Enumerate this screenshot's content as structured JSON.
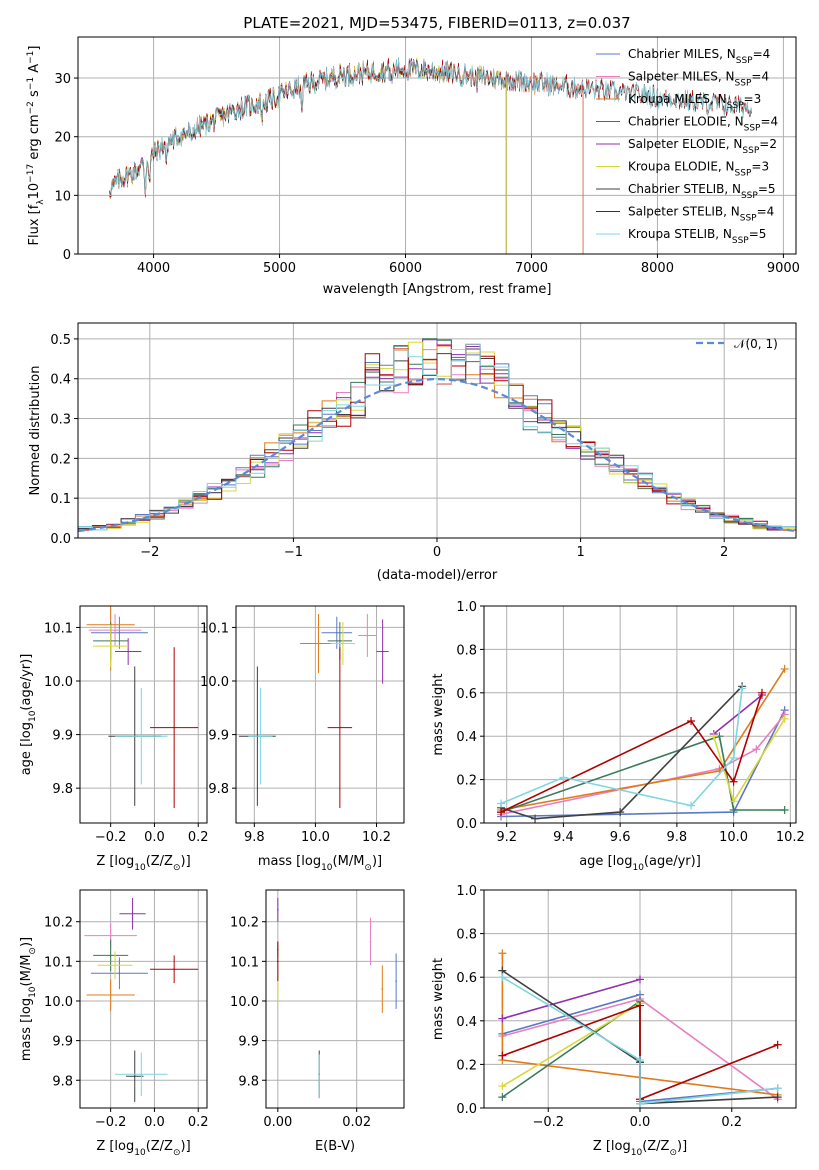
{
  "colors": [
    "#5a78c8",
    "#e87fc0",
    "#e07b1a",
    "#3a7a5a",
    "#9030b0",
    "#d8d83a",
    "#404040",
    "#b00000",
    "#7fd6e0"
  ],
  "legend_entries": [
    "Chabrier MILES, N",
    "Salpeter MILES, N",
    "Kroupa MILES, N",
    "Chabrier ELODIE, N",
    "Salpeter ELODIE, N",
    "Kroupa ELODIE, N",
    "Chabrier STELIB, N",
    "Salpeter STELIB, N",
    "Kroupa STELIB, N"
  ],
  "legend_sub": "SSP",
  "legend_vals": [
    "=4",
    "=4",
    "=3",
    "=4",
    "=2",
    "=3",
    "=5",
    "=4",
    "=5"
  ],
  "chart_data": [
    {
      "type": "line",
      "title": "PLATE=2021, MJD=53475, FIBERID=0113, z=0.037",
      "xlabel": "wavelength [Angstrom, rest frame]",
      "ylabel": "Flux [f",
      "ylabel_sub": "λ",
      "ylabel_rest": "10",
      "ylabel_exp": "−17",
      "ylabel_tail": " erg cm",
      "ylabel_exp2": "−2",
      "ylabel_tail2": " s",
      "ylabel_exp3": "−1",
      "ylabel_tail3": " A",
      "ylabel_exp4": "−1",
      "ylabel_end": "]",
      "xlim": [
        3400,
        9100
      ],
      "ylim": [
        0,
        37
      ],
      "xticks": [
        4000,
        5000,
        6000,
        7000,
        8000,
        9000
      ],
      "yticks": [
        0,
        10,
        20,
        30
      ],
      "spectrum_knots": [
        [
          3650,
          11
        ],
        [
          3750,
          13
        ],
        [
          3850,
          14
        ],
        [
          3950,
          16
        ],
        [
          4100,
          19
        ],
        [
          4300,
          21
        ],
        [
          4500,
          23
        ],
        [
          4700,
          25
        ],
        [
          4900,
          26
        ],
        [
          5100,
          28
        ],
        [
          5300,
          29.5
        ],
        [
          5500,
          30.5
        ],
        [
          5700,
          31
        ],
        [
          5900,
          31.5
        ],
        [
          6100,
          31.5
        ],
        [
          6300,
          31
        ],
        [
          6500,
          30.5
        ],
        [
          6700,
          30
        ],
        [
          6900,
          29.5
        ],
        [
          7100,
          29
        ],
        [
          7300,
          28.5
        ],
        [
          7500,
          28
        ],
        [
          7700,
          27.5
        ],
        [
          7900,
          27
        ],
        [
          8100,
          26.5
        ],
        [
          8300,
          26
        ],
        [
          8500,
          25.5
        ],
        [
          8700,
          25
        ],
        [
          8900,
          24.5
        ]
      ],
      "series": [
        {
          "name": "Chabrier MILES",
          "xmax": 7410
        },
        {
          "name": "Salpeter MILES",
          "xmax": 7410
        },
        {
          "name": "Kroupa MILES",
          "xmax": 7410
        },
        {
          "name": "Chabrier ELODIE",
          "xmax": 6800
        },
        {
          "name": "Salpeter ELODIE",
          "xmax": 6800
        },
        {
          "name": "Kroupa ELODIE",
          "xmax": 6800
        },
        {
          "name": "Chabrier STELIB",
          "xmax": 8750
        },
        {
          "name": "Salpeter STELIB",
          "xmax": 8750
        },
        {
          "name": "Kroupa STELIB",
          "xmax": 8750
        }
      ]
    },
    {
      "type": "histogram",
      "xlabel": "(data-model)/error",
      "ylabel": "Normed distribution",
      "xlim": [
        -2.5,
        2.5
      ],
      "ylim": [
        0,
        0.54
      ],
      "xticks": [
        -2,
        -1,
        0,
        1,
        2
      ],
      "xtick_labels": [
        "−2",
        "−1",
        "0",
        "1",
        "2"
      ],
      "yticks": [
        0,
        0.1,
        0.2,
        0.3,
        0.4,
        0.5
      ],
      "ytick_labels": [
        "0.0",
        "0.1",
        "0.2",
        "0.3",
        "0.4",
        "0.5"
      ],
      "bin_width": 0.1,
      "gaussian_label": "𝒩(0, 1)",
      "gaussian_color": "#5a8ad8"
    },
    {
      "type": "scatter",
      "xlabel": "Z [log",
      "xlabel_sub": "10",
      "xlabel_tail": "(Z/Z",
      "xlabel_sun": "⊙",
      "xlabel_end": ")]",
      "ylabel": "age  [log",
      "ylabel_sub": "10",
      "ylabel_tail": "(age/yr)]",
      "xlim": [
        -0.34,
        0.24
      ],
      "ylim": [
        9.735,
        10.14
      ],
      "xticks": [
        -0.2,
        0.0,
        0.2
      ],
      "xtick_labels": [
        "−0.2",
        "0.0",
        "0.2"
      ],
      "yticks": [
        9.8,
        9.9,
        10.0,
        10.1
      ],
      "ytick_labels": [
        "9.8",
        "9.9",
        "10.0",
        "10.1"
      ],
      "points": [
        {
          "x": -0.16,
          "y": 10.09,
          "xerr": 0.13,
          "yerr": 0.03
        },
        {
          "x": -0.18,
          "y": 10.095,
          "xerr": 0.12,
          "yerr": 0.03
        },
        {
          "x": -0.2,
          "y": 10.105,
          "xerr": 0.11,
          "yerr": 0.085
        },
        {
          "x": -0.2,
          "y": 10.075,
          "xerr": 0.08,
          "yerr": 0.035
        },
        {
          "x": -0.12,
          "y": 10.055,
          "xerr": 0.06,
          "yerr": 0.025
        },
        {
          "x": -0.2,
          "y": 10.065,
          "xerr": 0.08,
          "yerr": 0.04
        },
        {
          "x": -0.09,
          "y": 9.897,
          "xerr": 0.12,
          "yerr": 0.13
        },
        {
          "x": 0.09,
          "y": 9.913,
          "xerr": 0.11,
          "yerr": 0.15
        },
        {
          "x": -0.06,
          "y": 9.897,
          "xerr": 0.12,
          "yerr": 0.09
        }
      ]
    },
    {
      "type": "scatter",
      "xlabel": "mass [log",
      "xlabel_sub": "10",
      "xlabel_tail": "(M/M",
      "xlabel_sun": "⊙",
      "xlabel_end": ")]",
      "xlim": [
        9.74,
        10.29
      ],
      "ylim": [
        9.735,
        10.14
      ],
      "xticks": [
        9.8,
        10.0,
        10.2
      ],
      "xtick_labels": [
        "9.8",
        "10.0",
        "10.2"
      ],
      "yticks": [
        9.8,
        9.9,
        10.0,
        10.1
      ],
      "ytick_labels": [
        "9.8",
        "9.9",
        "10.0",
        "10.1"
      ],
      "points": [
        {
          "x": 10.07,
          "y": 10.09,
          "xerr": 0.05,
          "yerr": 0.03
        },
        {
          "x": 10.17,
          "y": 10.085,
          "xerr": 0.03,
          "yerr": 0.04
        },
        {
          "x": 10.01,
          "y": 10.07,
          "xerr": 0.06,
          "yerr": 0.055
        },
        {
          "x": 10.08,
          "y": 10.075,
          "xerr": 0.04,
          "yerr": 0.035
        },
        {
          "x": 10.22,
          "y": 10.055,
          "xerr": 0.02,
          "yerr": 0.06
        },
        {
          "x": 10.09,
          "y": 10.07,
          "xerr": 0.04,
          "yerr": 0.04
        },
        {
          "x": 9.81,
          "y": 9.897,
          "xerr": 0.06,
          "yerr": 0.13
        },
        {
          "x": 10.08,
          "y": 9.913,
          "xerr": 0.04,
          "yerr": 0.15
        },
        {
          "x": 9.82,
          "y": 9.897,
          "xerr": 0.04,
          "yerr": 0.09
        }
      ]
    },
    {
      "type": "line",
      "xlabel": "age  [log",
      "xlabel_sub": "10",
      "xlabel_tail": "(age/yr)]",
      "ylabel": "mass weight",
      "xlim": [
        9.12,
        10.22
      ],
      "ylim": [
        0,
        1.0
      ],
      "xticks": [
        9.2,
        9.4,
        9.6,
        9.8,
        10.0,
        10.2
      ],
      "xtick_labels": [
        "9.2",
        "9.4",
        "9.6",
        "9.8",
        "10.0",
        "10.2"
      ],
      "yticks": [
        0,
        0.2,
        0.4,
        0.6,
        0.8,
        1.0
      ],
      "ytick_labels": [
        "0.0",
        "0.2",
        "0.4",
        "0.6",
        "0.8",
        "1.0"
      ],
      "series": [
        {
          "name": "Chabrier MILES",
          "x": [
            9.18,
            10.0,
            10.18
          ],
          "y": [
            0.03,
            0.05,
            0.52
          ]
        },
        {
          "name": "Salpeter MILES",
          "x": [
            9.18,
            9.95,
            10.08,
            10.18
          ],
          "y": [
            0.04,
            0.25,
            0.34,
            0.5
          ]
        },
        {
          "name": "Kroupa MILES",
          "x": [
            9.18,
            9.95,
            10.18
          ],
          "y": [
            0.06,
            0.24,
            0.71
          ]
        },
        {
          "name": "Chabrier ELODIE",
          "x": [
            9.18,
            9.95,
            10.0,
            10.18
          ],
          "y": [
            0.05,
            0.4,
            0.06,
            0.06
          ]
        },
        {
          "name": "Salpeter ELODIE",
          "x": [
            9.93,
            10.1
          ],
          "y": [
            0.41,
            0.59
          ]
        },
        {
          "name": "Kroupa ELODIE",
          "x": [
            9.93,
            10.0,
            10.18
          ],
          "y": [
            0.4,
            0.1,
            0.48
          ]
        },
        {
          "name": "Chabrier STELIB",
          "x": [
            9.18,
            9.3,
            9.6,
            10.03
          ],
          "y": [
            0.07,
            0.02,
            0.05,
            0.63
          ]
        },
        {
          "name": "Salpeter STELIB",
          "x": [
            9.18,
            9.85,
            10.0,
            10.1
          ],
          "y": [
            0.05,
            0.47,
            0.19,
            0.6
          ]
        },
        {
          "name": "Kroupa STELIB",
          "x": [
            9.18,
            9.4,
            9.85,
            10.0,
            10.03
          ],
          "y": [
            0.09,
            0.21,
            0.08,
            0.3,
            0.62
          ]
        }
      ]
    },
    {
      "type": "scatter",
      "xlabel": "Z [log",
      "xlabel_sub": "10",
      "xlabel_tail": "(Z/Z",
      "xlabel_sun": "⊙",
      "xlabel_end": ")]",
      "ylabel": "mass [log",
      "ylabel_sub": "10",
      "ylabel_tail": "(M/M",
      "ylabel_sun": "⊙",
      "ylabel_end": ")]",
      "xlim": [
        -0.34,
        0.24
      ],
      "ylim": [
        9.73,
        10.28
      ],
      "xticks": [
        -0.2,
        0.0,
        0.2
      ],
      "xtick_labels": [
        "−0.2",
        "0.0",
        "0.2"
      ],
      "yticks": [
        9.8,
        9.9,
        10.0,
        10.1,
        10.2
      ],
      "ytick_labels": [
        "9.8",
        "9.9",
        "10.0",
        "10.1",
        "10.2"
      ],
      "points": [
        {
          "x": -0.16,
          "y": 10.07,
          "xerr": 0.13,
          "yerr": 0.04
        },
        {
          "x": -0.2,
          "y": 10.165,
          "xerr": 0.12,
          "yerr": 0.03
        },
        {
          "x": -0.2,
          "y": 10.015,
          "xerr": 0.11,
          "yerr": 0.04
        },
        {
          "x": -0.2,
          "y": 10.115,
          "xerr": 0.08,
          "yerr": 0.04
        },
        {
          "x": -0.1,
          "y": 10.22,
          "xerr": 0.06,
          "yerr": 0.04
        },
        {
          "x": -0.18,
          "y": 10.09,
          "xerr": 0.08,
          "yerr": 0.035
        },
        {
          "x": -0.09,
          "y": 9.81,
          "xerr": 0.04,
          "yerr": 0.065
        },
        {
          "x": 0.09,
          "y": 10.08,
          "xerr": 0.11,
          "yerr": 0.035
        },
        {
          "x": -0.06,
          "y": 9.815,
          "xerr": 0.12,
          "yerr": 0.055
        }
      ]
    },
    {
      "type": "scatter",
      "xlabel": "E(B-V)",
      "xlim": [
        -0.003,
        0.032
      ],
      "ylim": [
        9.73,
        10.28
      ],
      "xticks": [
        0.0,
        0.02
      ],
      "xtick_labels": [
        "0.00",
        "0.02"
      ],
      "yticks": [
        9.8,
        9.9,
        10.0,
        10.1,
        10.2
      ],
      "ytick_labels": [
        "9.8",
        "9.9",
        "10.0",
        "10.1",
        "10.2"
      ],
      "points": [
        {
          "x": 0.03,
          "y": 10.05,
          "xerr": 0,
          "yerr": 0.07
        },
        {
          "x": 0.0235,
          "y": 10.15,
          "xerr": 0,
          "yerr": 0.06
        },
        {
          "x": 0.0265,
          "y": 10.03,
          "xerr": 0,
          "yerr": 0.06
        },
        {
          "x": 0.0,
          "y": 10.13,
          "xerr": 0,
          "yerr": 0.02
        },
        {
          "x": 0.0,
          "y": 10.23,
          "xerr": 0,
          "yerr": 0.03
        },
        {
          "x": 0.0,
          "y": 10.03,
          "xerr": 0,
          "yerr": 0.03
        },
        {
          "x": 0.0105,
          "y": 9.815,
          "xerr": 0,
          "yerr": 0.06
        },
        {
          "x": 0.0,
          "y": 10.1,
          "xerr": 0,
          "yerr": 0.05
        },
        {
          "x": 0.0105,
          "y": 9.81,
          "xerr": 0,
          "yerr": 0.055
        }
      ]
    },
    {
      "type": "line",
      "xlabel": "Z [log",
      "xlabel_sub": "10",
      "xlabel_tail": "(Z/Z",
      "xlabel_sun": "⊙",
      "xlabel_end": ")]",
      "ylabel": "mass weight",
      "xlim": [
        -0.34,
        0.34
      ],
      "ylim": [
        0,
        1.0
      ],
      "xticks": [
        -0.2,
        0.0,
        0.2
      ],
      "xtick_labels": [
        "−0.2",
        "0.0",
        "0.2"
      ],
      "yticks": [
        0,
        0.2,
        0.4,
        0.6,
        0.8,
        1.0
      ],
      "ytick_labels": [
        "0.0",
        "0.2",
        "0.4",
        "0.6",
        "0.8",
        "1.0"
      ],
      "series": [
        {
          "name": "Chabrier MILES",
          "x": [
            -0.3,
            0.0,
            0.0,
            0.3
          ],
          "y": [
            0.34,
            0.52,
            0.03,
            0.09
          ]
        },
        {
          "name": "Salpeter MILES",
          "x": [
            -0.3,
            0.0,
            0.3
          ],
          "y": [
            0.33,
            0.5,
            0.04
          ]
        },
        {
          "name": "Kroupa MILES",
          "x": [
            -0.3,
            -0.3,
            0.3
          ],
          "y": [
            0.71,
            0.22,
            0.06
          ]
        },
        {
          "name": "Chabrier ELODIE",
          "x": [
            -0.3,
            0.0,
            0.0
          ],
          "y": [
            0.05,
            0.49,
            0.21
          ]
        },
        {
          "name": "Salpeter ELODIE",
          "x": [
            -0.3,
            0.0
          ],
          "y": [
            0.41,
            0.59
          ]
        },
        {
          "name": "Kroupa ELODIE",
          "x": [
            -0.3,
            0.0
          ],
          "y": [
            0.1,
            0.48
          ]
        },
        {
          "name": "Chabrier STELIB",
          "x": [
            -0.3,
            0.0,
            0.0,
            0.3
          ],
          "y": [
            0.63,
            0.21,
            0.02,
            0.05
          ]
        },
        {
          "name": "Salpeter STELIB",
          "x": [
            -0.3,
            0.0,
            0.0,
            0.3
          ],
          "y": [
            0.24,
            0.47,
            0.04,
            0.29
          ]
        },
        {
          "name": "Kroupa STELIB",
          "x": [
            -0.3,
            0.0,
            0.0,
            0.3
          ],
          "y": [
            0.6,
            0.22,
            0.02,
            0.09
          ]
        }
      ]
    }
  ]
}
